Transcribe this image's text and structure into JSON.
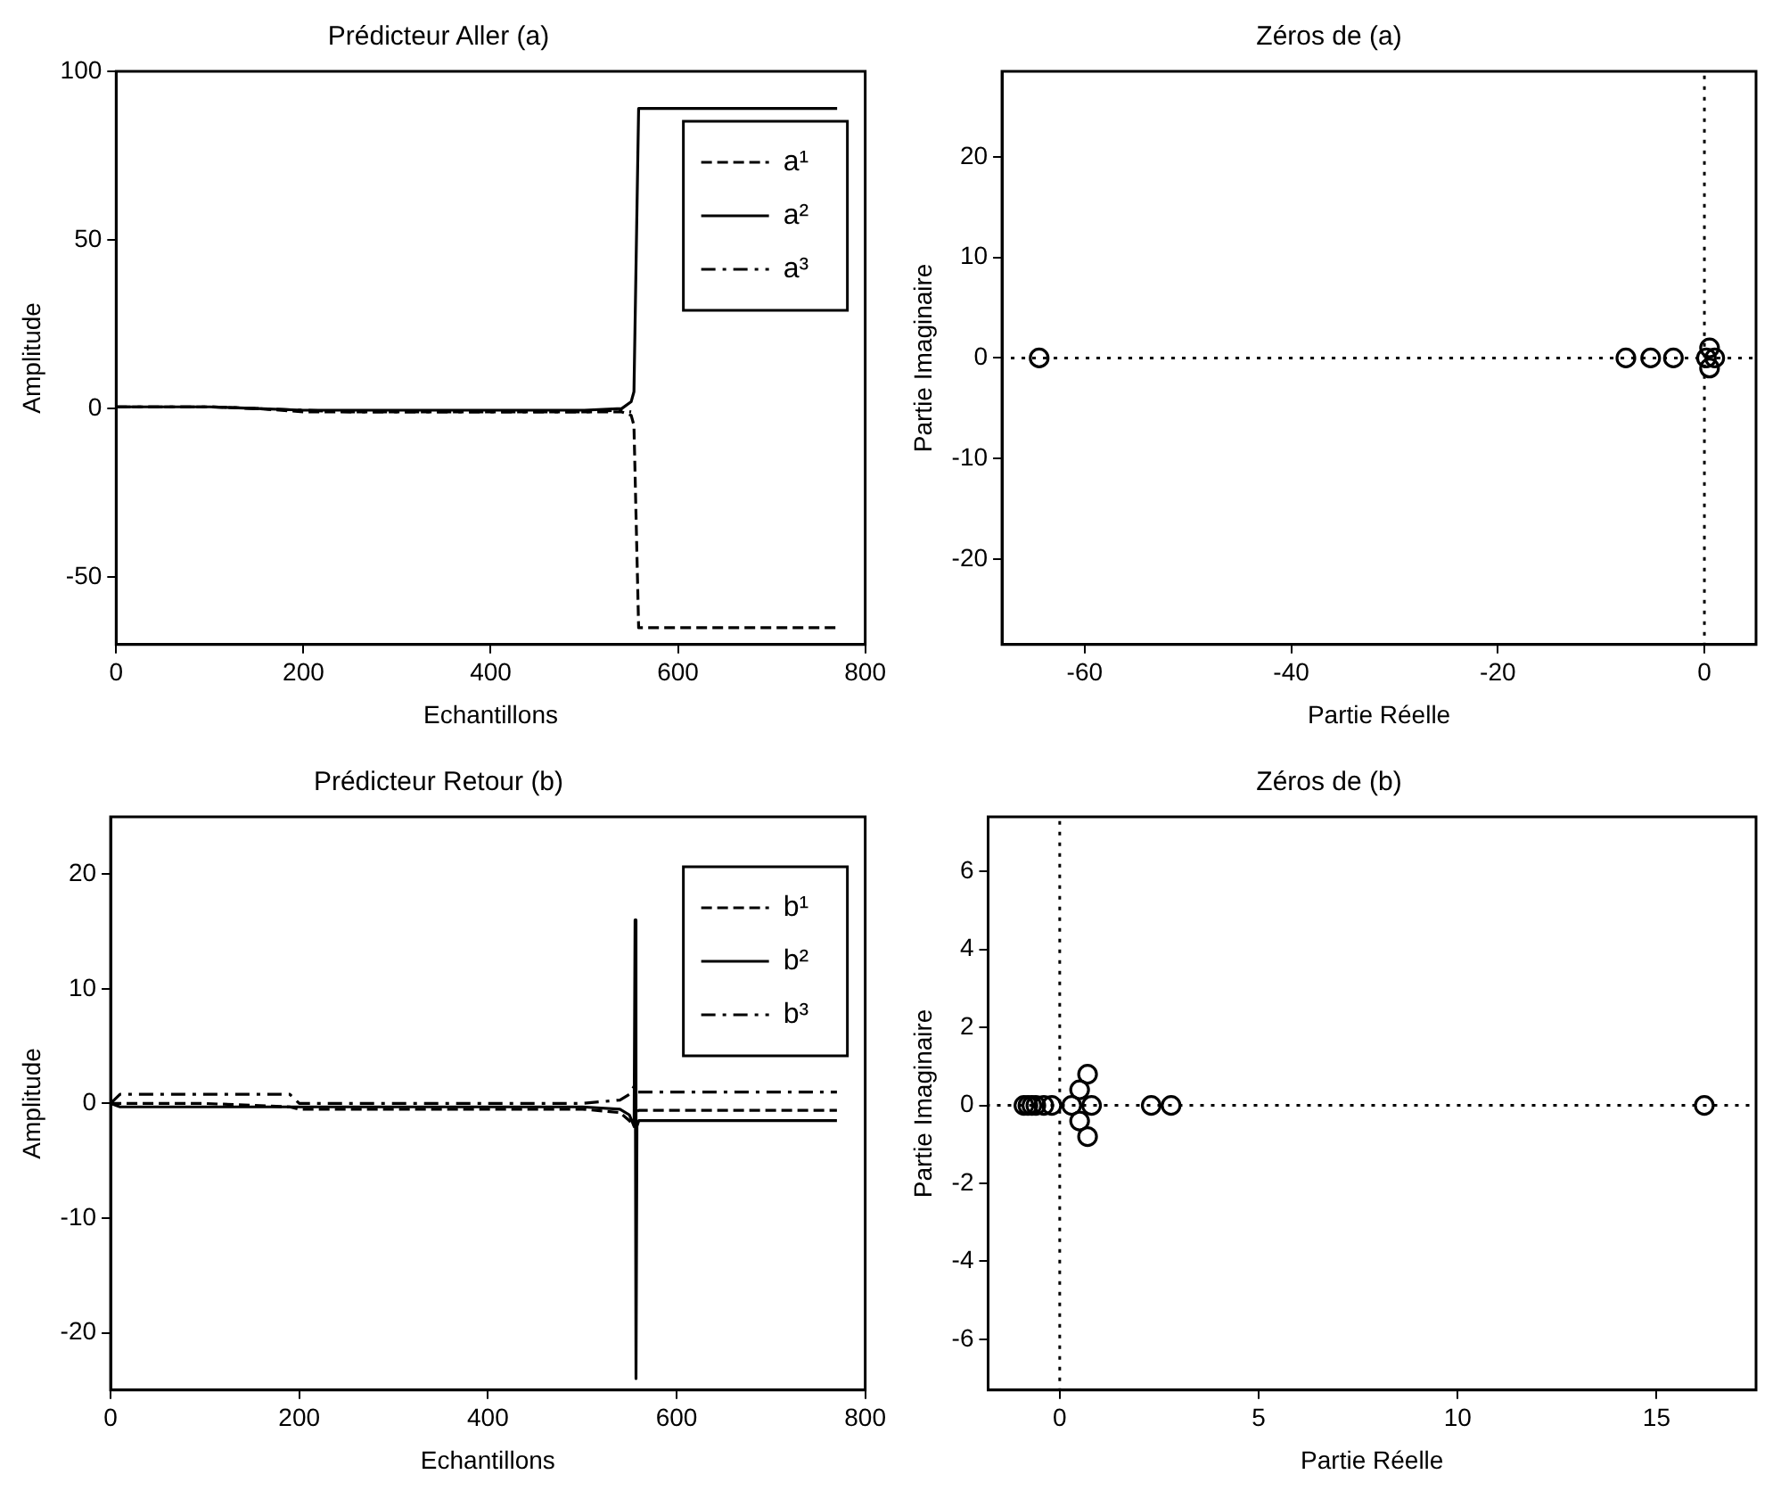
{
  "chart_data": [
    {
      "type": "line",
      "title": "Prédicteur Aller (a)",
      "xlabel": "Echantillons",
      "ylabel": "Amplitude",
      "x": [
        0,
        50,
        100,
        150,
        200,
        250,
        300,
        350,
        400,
        450,
        500,
        540,
        550,
        553,
        558,
        600,
        700,
        770
      ],
      "xlim": [
        0,
        800
      ],
      "xticks": [
        0,
        200,
        400,
        600,
        800
      ],
      "ylim": [
        -70,
        100
      ],
      "yticks": [
        -50,
        0,
        50,
        100
      ],
      "grid": false,
      "legend": "top right",
      "series": [
        {
          "name": "a¹",
          "color": "#000000",
          "line_style": "dashed",
          "values": [
            0.5,
            0.5,
            0.5,
            0,
            -1,
            -1,
            -1,
            -1,
            -1,
            -1,
            -1,
            -1,
            -2,
            -5,
            -65,
            -65,
            -65,
            -65
          ]
        },
        {
          "name": "a²",
          "color": "#000000",
          "line_style": "solid",
          "values": [
            0.5,
            0.5,
            0.5,
            0,
            -0.5,
            -0.5,
            -0.5,
            -0.5,
            -0.5,
            -0.5,
            -0.5,
            0,
            2,
            5,
            89,
            89,
            89,
            89
          ]
        },
        {
          "name": "a³",
          "color": "#000000",
          "line_style": "dashdot",
          "values": [
            0.5,
            0.5,
            0.5,
            0,
            -0.5,
            -1,
            -1,
            -1,
            -1,
            -1,
            -1,
            -0.5,
            -1,
            null,
            null,
            null,
            null,
            null
          ]
        }
      ]
    },
    {
      "type": "scatter",
      "title": "Zéros de (a)",
      "xlabel": "Partie Réelle",
      "ylabel": "Partie Imaginaire",
      "xlim": [
        -68,
        5
      ],
      "xticks": [
        -60,
        -40,
        -20,
        0
      ],
      "ylim": [
        -28.5,
        28.5
      ],
      "yticks": [
        -20,
        -10,
        0,
        10,
        20
      ],
      "grid": false,
      "marker": "circle",
      "x": [
        -64.4,
        -7.6,
        -5.2,
        -3,
        0.2,
        0.5,
        0.5,
        1
      ],
      "ref_lines": [
        {
          "axis": "x",
          "value": 0,
          "line_style": "dotted",
          "color": "#000000"
        },
        {
          "axis": "y",
          "value": 0,
          "line_style": "dotted",
          "color": "#000000"
        }
      ],
      "series": [
        {
          "color": "#000000",
          "values": [
            0,
            0,
            0,
            0,
            0,
            1,
            -1,
            0
          ]
        }
      ]
    },
    {
      "type": "line",
      "title": "Prédicteur Retour (b)",
      "xlabel": "Echantillons",
      "ylabel": "Amplitude",
      "x": [
        0,
        10,
        100,
        190,
        200,
        300,
        400,
        500,
        540,
        550,
        555,
        556,
        557,
        558,
        560,
        600,
        700,
        770
      ],
      "xlim": [
        0,
        800
      ],
      "xticks": [
        0,
        200,
        400,
        600,
        800
      ],
      "ylim": [
        -25,
        25
      ],
      "yticks": [
        -20,
        -10,
        0,
        10,
        20
      ],
      "grid": false,
      "legend": "top right",
      "series": [
        {
          "name": "b¹",
          "color": "#000000",
          "line_style": "dashed",
          "values": [
            0,
            0,
            0,
            -0.3,
            -0.5,
            -0.5,
            -0.5,
            -0.5,
            -0.8,
            -1.5,
            -2,
            -1,
            -0.8,
            -0.7,
            -0.6,
            -0.6,
            -0.6,
            -0.6
          ]
        },
        {
          "name": "b²",
          "color": "#000000",
          "line_style": "solid",
          "values": [
            0,
            -0.3,
            -0.3,
            -0.3,
            -0.3,
            -0.3,
            -0.3,
            -0.3,
            -0.5,
            -1,
            -2,
            16,
            -24,
            -2,
            -1.5,
            -1.5,
            -1.5,
            -1.5
          ]
        },
        {
          "name": "b³",
          "color": "#000000",
          "line_style": "dashdot",
          "values": [
            0,
            0.8,
            0.8,
            0.8,
            0,
            0,
            0,
            0,
            0.3,
            0.8,
            1.5,
            1.2,
            1,
            1,
            1,
            1,
            1,
            1
          ]
        }
      ]
    },
    {
      "type": "scatter",
      "title": "Zéros de (b)",
      "xlabel": "Partie Réelle",
      "ylabel": "Partie Imaginaire",
      "xlim": [
        -1.8,
        17.5
      ],
      "xticks": [
        0,
        5,
        10,
        15
      ],
      "ylim": [
        -7.3,
        7.4
      ],
      "yticks": [
        -6,
        -4,
        -2,
        0,
        2,
        4,
        6
      ],
      "grid": false,
      "marker": "circle",
      "x": [
        -0.9,
        -0.8,
        -0.7,
        -0.6,
        -0.4,
        -0.2,
        0.3,
        0.5,
        0.5,
        0.7,
        0.7,
        0.8,
        2.3,
        2.8,
        16.2
      ],
      "ref_lines": [
        {
          "axis": "x",
          "value": 0,
          "line_style": "dotted",
          "color": "#000000"
        },
        {
          "axis": "y",
          "value": 0,
          "line_style": "dotted",
          "color": "#000000"
        }
      ],
      "series": [
        {
          "color": "#000000",
          "values": [
            0,
            0,
            0,
            0,
            0,
            0,
            0,
            0.4,
            -0.4,
            0.8,
            -0.8,
            0,
            0,
            0,
            0
          ]
        }
      ]
    }
  ]
}
